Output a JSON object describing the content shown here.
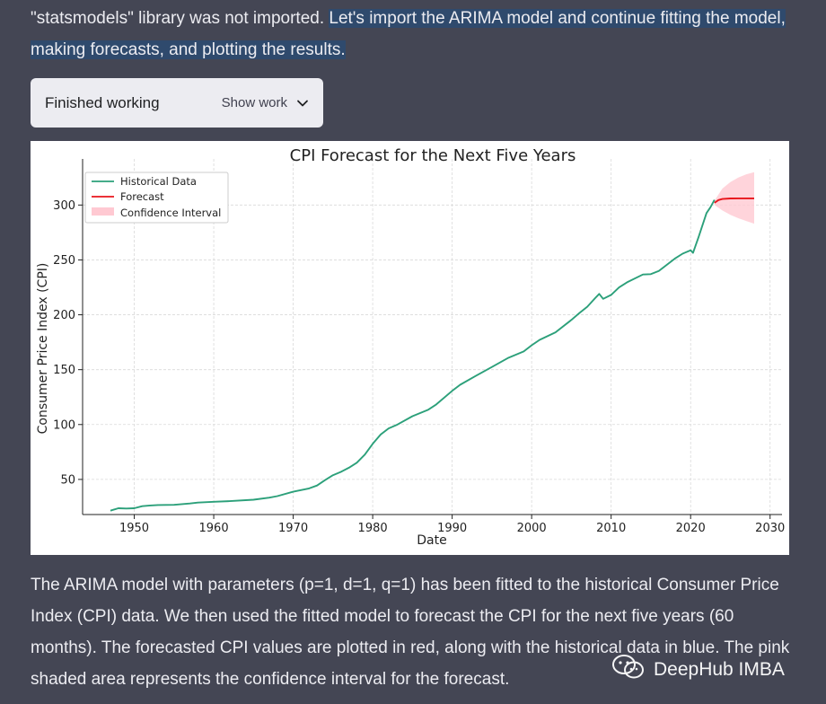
{
  "message": {
    "para1_plain": "\"statsmodels\" library was not imported. ",
    "para1_highlight": "Let's import the ARIMA model and continue fitting the model, making forecasts, and plotting the results.",
    "para2": "The ARIMA model with parameters (p=1, d=1, q=1) has been fitted to the historical Consumer Price Index (CPI) data. We then used the fitted model to forecast the CPI for the next five years (60 months). The forecasted CPI values are plotted in red, along with the historical data in blue. The pink shaded area represents the confidence interval for the forecast."
  },
  "work_status": {
    "label": "Finished working",
    "toggle_label": "Show work",
    "toggle_icon": "chevron-down-icon"
  },
  "watermark": {
    "text": "DeepHub IMBA",
    "icon": "wechat-icon"
  },
  "colors": {
    "page_bg": "#444654",
    "historical": "#2ca07a",
    "forecast": "#e8151b",
    "confidence": "#ffc9d2",
    "highlight": "#2f4a6d"
  },
  "chart_data": {
    "type": "line",
    "title": "CPI Forecast for the Next Five Years",
    "xlabel": "Date",
    "ylabel": "Consumer Price Index (CPI)",
    "xlim": [
      1943.5,
      2031.5
    ],
    "ylim": [
      18,
      342
    ],
    "xticks": [
      1950,
      1960,
      1970,
      1980,
      1990,
      2000,
      2010,
      2020,
      2030
    ],
    "yticks": [
      50,
      100,
      150,
      200,
      250,
      300
    ],
    "grid": true,
    "legend_position": "top-left",
    "legend": [
      "Historical Data",
      "Forecast",
      "Confidence Interval"
    ],
    "series": [
      {
        "name": "Historical Data",
        "x": [
          1947,
          1948,
          1949,
          1950,
          1951,
          1952,
          1953,
          1955,
          1957,
          1958,
          1960,
          1962,
          1965,
          1967,
          1968,
          1970,
          1972,
          1973,
          1974,
          1975,
          1976,
          1977,
          1978,
          1979,
          1980,
          1981,
          1982,
          1983,
          1985,
          1987,
          1988,
          1990,
          1991,
          1993,
          1995,
          1997,
          1999,
          2000,
          2001,
          2003,
          2005,
          2006,
          2007,
          2008,
          2008.5,
          2009,
          2010,
          2011,
          2012,
          2014,
          2015,
          2016,
          2018,
          2019,
          2020,
          2020.3,
          2021,
          2022,
          2022.5,
          2023
        ],
        "values": [
          21.5,
          23.7,
          23.5,
          23.7,
          25.6,
          26.3,
          26.7,
          26.8,
          28.1,
          28.9,
          29.6,
          30.2,
          31.5,
          33.4,
          34.8,
          38.8,
          41.8,
          44.4,
          49.3,
          53.8,
          56.9,
          60.6,
          65.2,
          72.6,
          82.4,
          90.9,
          96.5,
          99.6,
          107.6,
          113.6,
          118.3,
          130.7,
          136.2,
          144.5,
          152.4,
          160.5,
          166.6,
          172.2,
          177.1,
          184.0,
          195.3,
          201.6,
          207.3,
          215.3,
          219.0,
          214.5,
          218.1,
          224.9,
          229.6,
          236.7,
          237.0,
          240.0,
          251.1,
          255.7,
          258.8,
          256.4,
          270.9,
          292.7,
          298.0,
          304.7
        ]
      },
      {
        "name": "Forecast",
        "x": [
          2023,
          2023.5,
          2024,
          2025,
          2026,
          2027,
          2028
        ],
        "values": [
          302.0,
          304.5,
          305.5,
          306.0,
          306.1,
          306.1,
          306.1
        ]
      }
    ],
    "confidence_interval": {
      "x": [
        2023,
        2024,
        2025,
        2026,
        2027,
        2028
      ],
      "lower": [
        300.0,
        295.0,
        291.0,
        288.0,
        285.5,
        283.0
      ],
      "upper": [
        304.0,
        315.0,
        321.0,
        325.0,
        328.0,
        330.0
      ]
    }
  }
}
